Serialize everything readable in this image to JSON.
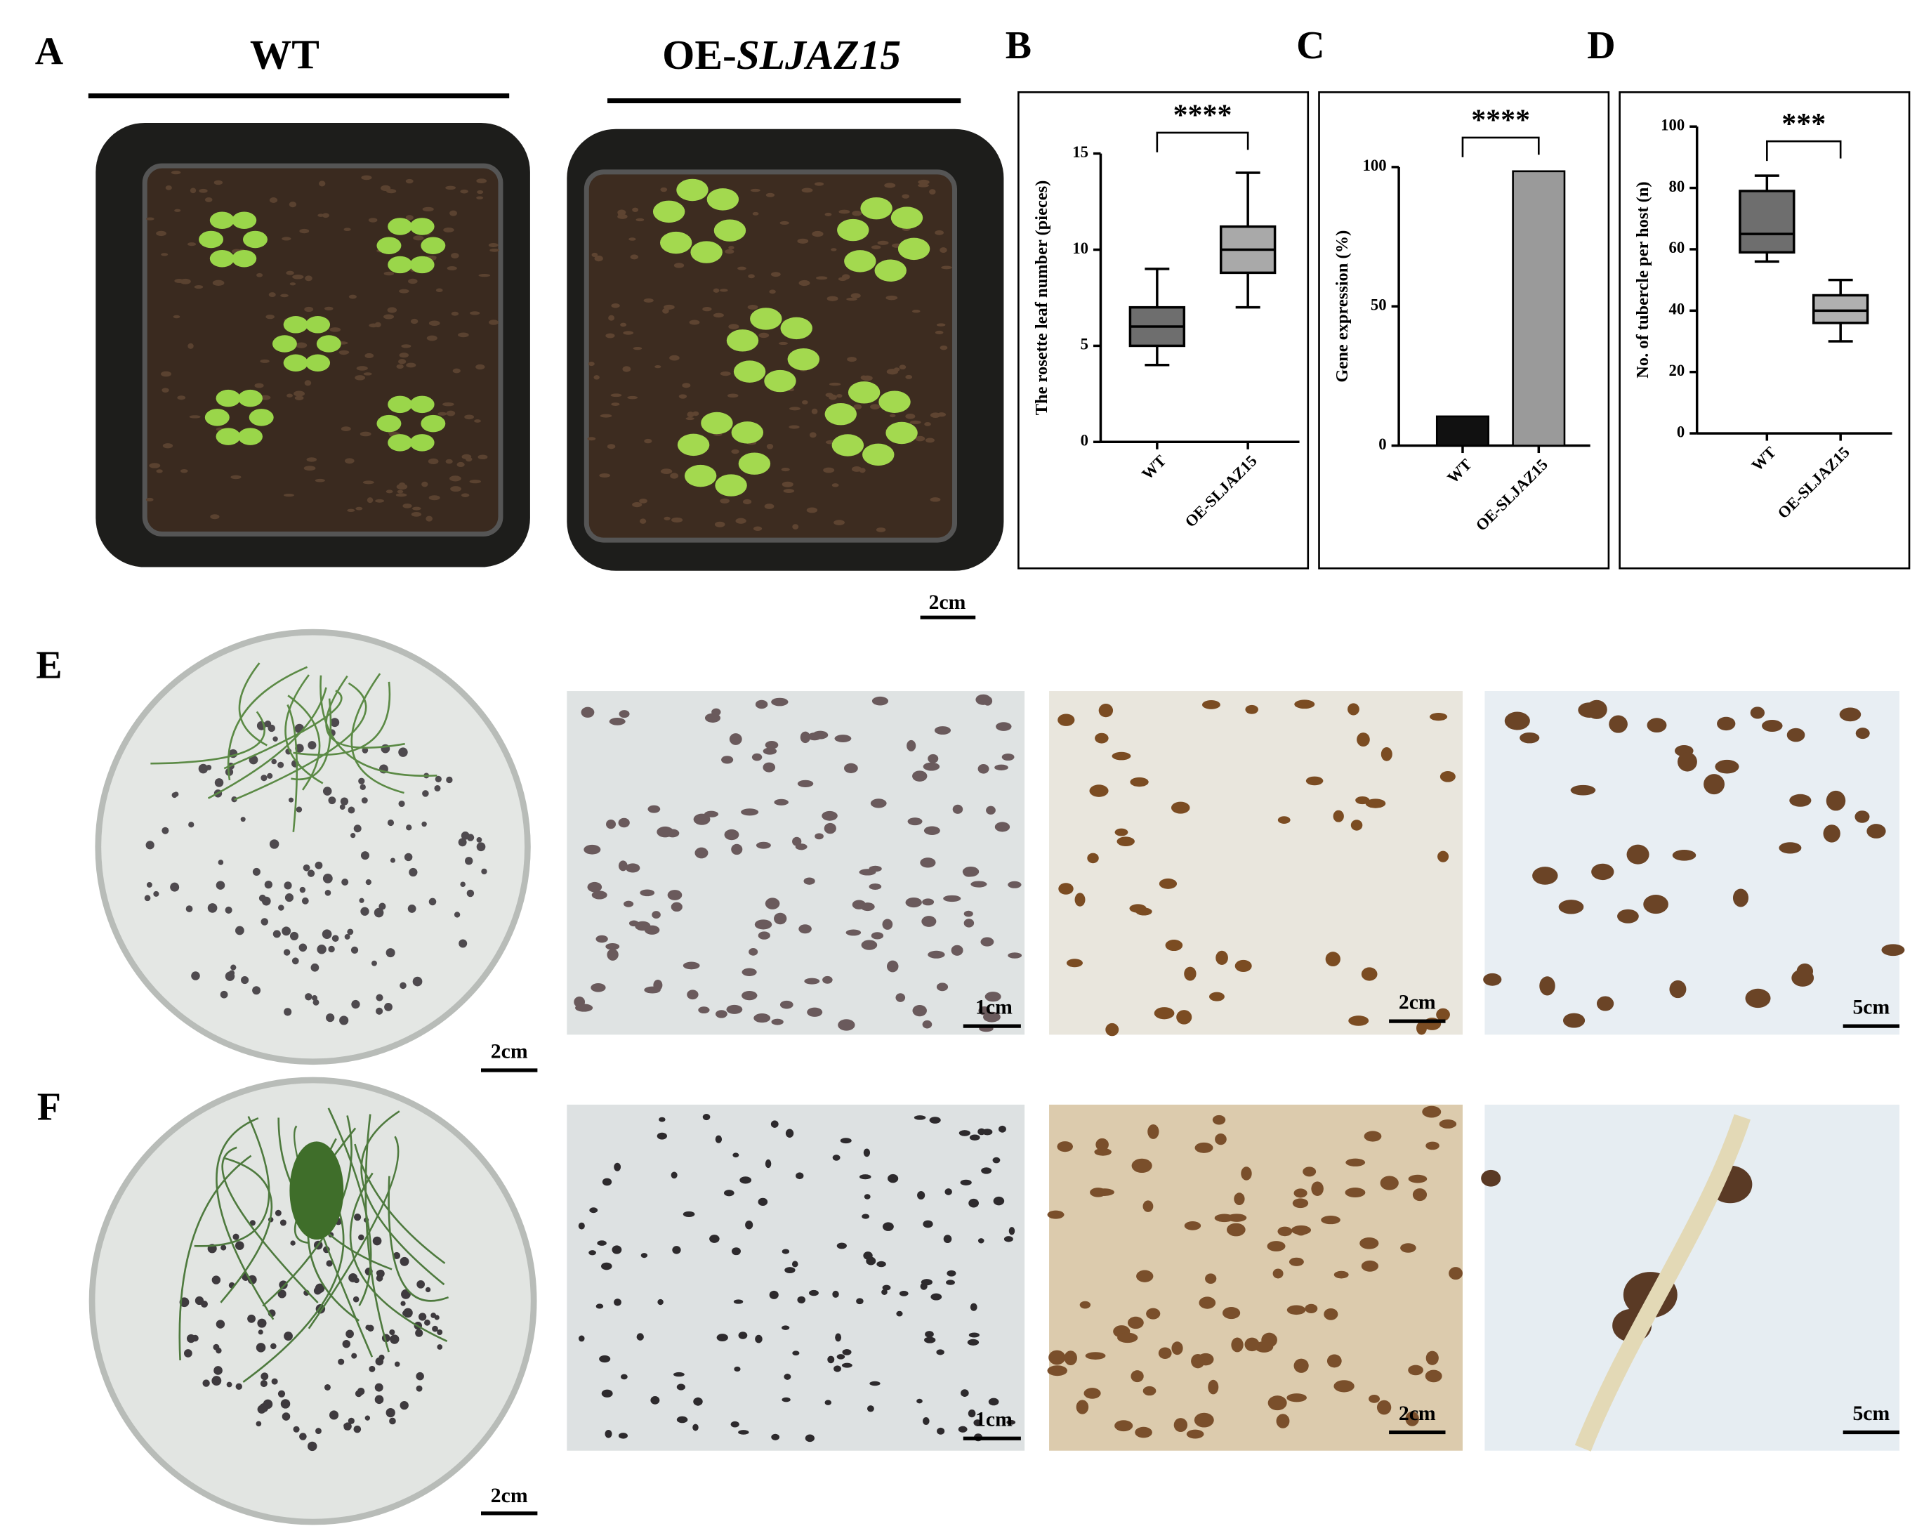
{
  "figure": {
    "panels": {
      "A": "A",
      "B": "B",
      "C": "C",
      "D": "D",
      "E": "E",
      "F": "F"
    },
    "wt_header": "WT",
    "oe_header": {
      "prefix": "OE-",
      "italic": "SLJAZ15"
    },
    "scale_labels": [
      "2cm",
      "2cm",
      "1cm",
      "2cm",
      "5cm",
      "2cm",
      "1cm",
      "2cm",
      "5cm"
    ]
  },
  "chart_data": [
    {
      "type": "box",
      "y_label": "The rosette leaf number (pieces)",
      "categories": [
        "WT",
        "OE-SLJAZ15"
      ],
      "boxes": [
        {
          "min": 4,
          "q1": 5,
          "median": 6,
          "q3": 7,
          "max": 9,
          "color": "#6e6e6e"
        },
        {
          "min": 7,
          "q1": 8.8,
          "median": 10,
          "q3": 11.2,
          "max": 14,
          "color": "#a9a9a9"
        }
      ],
      "ylim": [
        0,
        15
      ],
      "yticks": [
        0,
        5,
        10,
        15
      ],
      "annotation": "****"
    },
    {
      "type": "bar",
      "y_label": "Gene expression (%)",
      "categories": [
        "WT",
        "OE-SLJAZ15"
      ],
      "values": [
        10.5,
        98.5
      ],
      "colors": [
        "#111111",
        "#9a9a9a"
      ],
      "ylim": [
        0,
        100
      ],
      "yticks": [
        0,
        50,
        100
      ],
      "annotation": "****"
    },
    {
      "type": "box",
      "y_label": "No. of tubercle per host (n)",
      "categories": [
        "WT",
        "OE-SLJAZ15"
      ],
      "boxes": [
        {
          "min": 56,
          "q1": 59,
          "median": 65,
          "q3": 79,
          "max": 84,
          "color": "#6e6e6e"
        },
        {
          "min": 30,
          "q1": 36,
          "median": 40,
          "q3": 45,
          "max": 50,
          "color": "#b0b0b0"
        }
      ],
      "ylim": [
        0,
        100
      ],
      "yticks": [
        0,
        20,
        40,
        60,
        80,
        100
      ],
      "annotation": "***"
    }
  ]
}
